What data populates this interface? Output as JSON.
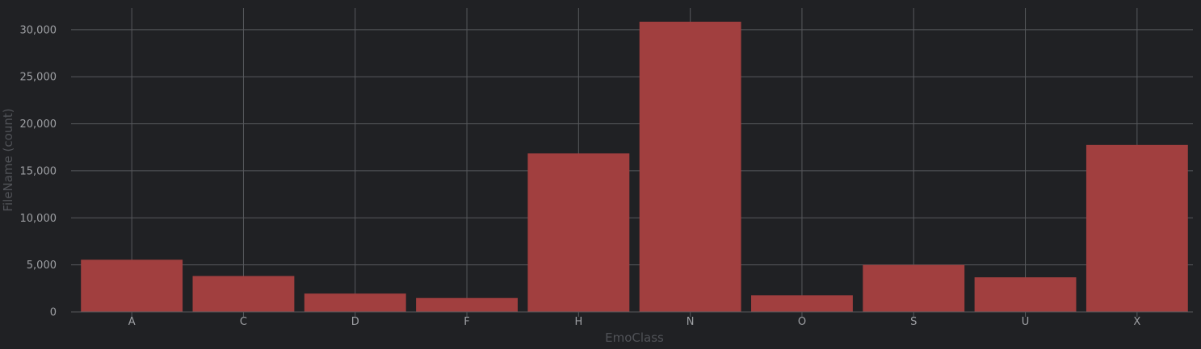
{
  "chart_data": {
    "type": "bar",
    "title": "",
    "xlabel": "EmoClass",
    "ylabel": "FileName (count)",
    "categories": [
      "A",
      "C",
      "D",
      "F",
      "H",
      "N",
      "O",
      "S",
      "U",
      "X"
    ],
    "values": [
      5550,
      3820,
      1950,
      1480,
      16850,
      30850,
      1770,
      5000,
      3680,
      17750
    ],
    "ylim": [
      0,
      32300
    ],
    "yticks": [
      0,
      5000,
      10000,
      15000,
      20000,
      25000,
      30000
    ],
    "ytick_labels": [
      "0",
      "5,000",
      "10,000",
      "15,000",
      "20,000",
      "25,000",
      "30,000"
    ],
    "grid": true,
    "bar_color": "#a13f3f",
    "background": "#202124"
  }
}
